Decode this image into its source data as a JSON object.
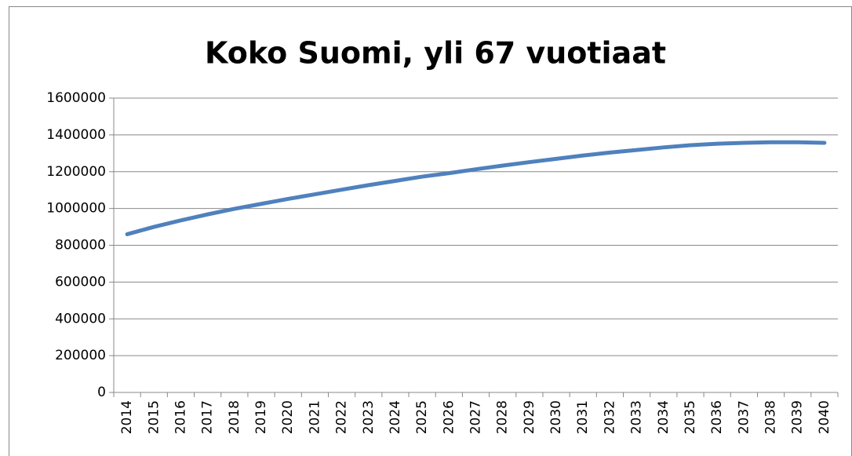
{
  "chart_data": {
    "type": "line",
    "title": "Koko Suomi, yli 67 vuotiaat",
    "categories": [
      "2014",
      "2015",
      "2016",
      "2017",
      "2018",
      "2019",
      "2020",
      "2021",
      "2022",
      "2023",
      "2024",
      "2025",
      "2026",
      "2027",
      "2028",
      "2029",
      "2030",
      "2031",
      "2032",
      "2033",
      "2034",
      "2035",
      "2036",
      "2037",
      "2038",
      "2039",
      "2040"
    ],
    "series": [
      {
        "color": "#4f81bd",
        "values": [
          860000,
          900000,
          935000,
          968000,
          998000,
          1025000,
          1052000,
          1077000,
          1102000,
          1127000,
          1150000,
          1173000,
          1192000,
          1213000,
          1233000,
          1252000,
          1270000,
          1288000,
          1304000,
          1318000,
          1332000,
          1344000,
          1352000,
          1357000,
          1360000,
          1360000,
          1357000
        ]
      }
    ],
    "ylim": [
      0,
      1600000
    ],
    "yticks": [
      0,
      200000,
      400000,
      600000,
      800000,
      1000000,
      1200000,
      1400000,
      1600000
    ],
    "grid": true
  }
}
